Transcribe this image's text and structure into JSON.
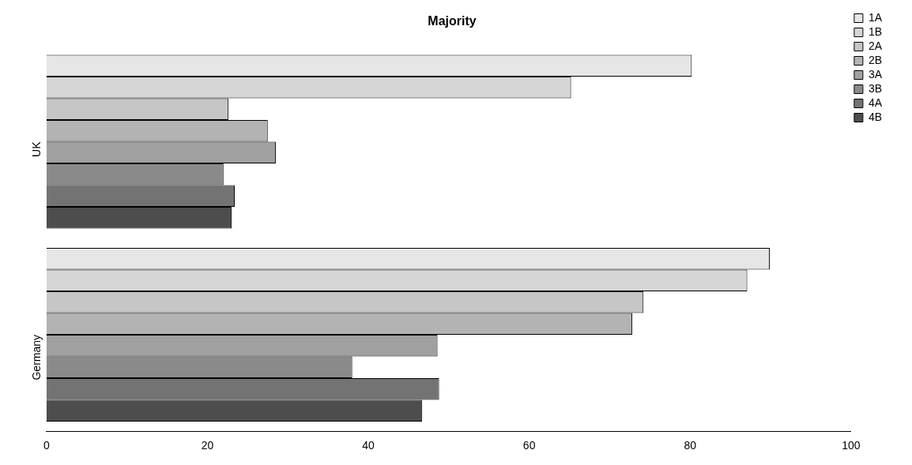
{
  "chart_data": {
    "type": "bar",
    "title": "Majority",
    "orientation": "horizontal",
    "categories": [
      "UK",
      "Germany"
    ],
    "series": [
      {
        "name": "1A",
        "color": "#e6e6e6",
        "values": [
          80.2,
          89.9
        ]
      },
      {
        "name": "1B",
        "color": "#d6d6d6",
        "values": [
          65.2,
          87.1
        ]
      },
      {
        "name": "2A",
        "color": "#c6c6c6",
        "values": [
          22.6,
          74.2
        ]
      },
      {
        "name": "2B",
        "color": "#b3b3b3",
        "values": [
          27.5,
          72.8
        ]
      },
      {
        "name": "3A",
        "color": "#a0a0a0",
        "values": [
          28.5,
          48.6
        ]
      },
      {
        "name": "3B",
        "color": "#8a8a8a",
        "values": [
          22.0,
          38.0
        ]
      },
      {
        "name": "4A",
        "color": "#737373",
        "values": [
          23.4,
          48.8
        ]
      },
      {
        "name": "4B",
        "color": "#4d4d4d",
        "values": [
          23.0,
          46.7
        ]
      }
    ],
    "xlim": [
      0,
      100
    ],
    "xticks": [
      0,
      20,
      40,
      60,
      80,
      100
    ],
    "grid": false,
    "legend": "top right"
  }
}
